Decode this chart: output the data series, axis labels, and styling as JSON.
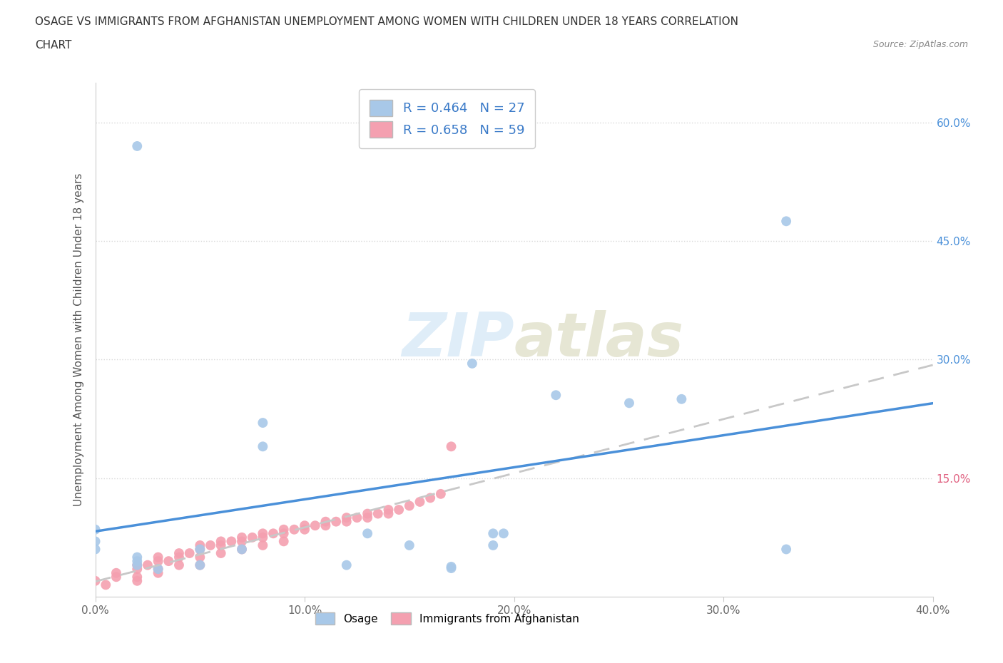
{
  "title_line1": "OSAGE VS IMMIGRANTS FROM AFGHANISTAN UNEMPLOYMENT AMONG WOMEN WITH CHILDREN UNDER 18 YEARS CORRELATION",
  "title_line2": "CHART",
  "source_text": "Source: ZipAtlas.com",
  "ylabel": "Unemployment Among Women with Children Under 18 years",
  "xlim": [
    0.0,
    0.4
  ],
  "ylim": [
    0.0,
    0.65
  ],
  "xtick_labels": [
    "0.0%",
    "10.0%",
    "20.0%",
    "30.0%",
    "40.0%"
  ],
  "xtick_values": [
    0.0,
    0.1,
    0.2,
    0.3,
    0.4
  ],
  "ytick_values": [
    0.15,
    0.3,
    0.45,
    0.6
  ],
  "osage_R": 0.464,
  "osage_N": 27,
  "afghan_R": 0.658,
  "afghan_N": 59,
  "osage_color": "#a8c8e8",
  "osage_line_color": "#4a90d9",
  "afghan_color": "#f4a0b0",
  "afghan_line_color": "#e06080",
  "trendline_osage_color": "#4a90d9",
  "trendline_afghan_color": "#c8c8c8",
  "watermark_zip": "ZIP",
  "watermark_atlas": "atlas",
  "legend_label_osage": "Osage",
  "legend_label_afghan": "Immigrants from Afghanistan",
  "osage_x": [
    0.02,
    0.18,
    0.22,
    0.28,
    0.255,
    0.08,
    0.08,
    0.0,
    0.0,
    0.0,
    0.02,
    0.02,
    0.02,
    0.17,
    0.17,
    0.15,
    0.13,
    0.07,
    0.05,
    0.05,
    0.03,
    0.33,
    0.195,
    0.19,
    0.33,
    0.19,
    0.12
  ],
  "osage_y": [
    0.57,
    0.295,
    0.255,
    0.25,
    0.245,
    0.22,
    0.19,
    0.085,
    0.07,
    0.06,
    0.05,
    0.045,
    0.04,
    0.038,
    0.036,
    0.065,
    0.08,
    0.06,
    0.06,
    0.04,
    0.035,
    0.475,
    0.08,
    0.065,
    0.06,
    0.08,
    0.04
  ],
  "afghan_x": [
    0.0,
    0.005,
    0.01,
    0.01,
    0.02,
    0.02,
    0.02,
    0.02,
    0.025,
    0.03,
    0.03,
    0.03,
    0.03,
    0.035,
    0.04,
    0.04,
    0.04,
    0.045,
    0.05,
    0.05,
    0.05,
    0.05,
    0.055,
    0.06,
    0.06,
    0.06,
    0.065,
    0.07,
    0.07,
    0.07,
    0.075,
    0.08,
    0.08,
    0.08,
    0.085,
    0.09,
    0.09,
    0.09,
    0.095,
    0.1,
    0.1,
    0.105,
    0.11,
    0.11,
    0.115,
    0.12,
    0.12,
    0.125,
    0.13,
    0.13,
    0.135,
    0.14,
    0.14,
    0.145,
    0.15,
    0.155,
    0.16,
    0.165,
    0.17
  ],
  "afghan_y": [
    0.02,
    0.015,
    0.03,
    0.025,
    0.04,
    0.035,
    0.025,
    0.02,
    0.04,
    0.05,
    0.045,
    0.035,
    0.03,
    0.045,
    0.055,
    0.05,
    0.04,
    0.055,
    0.065,
    0.06,
    0.05,
    0.04,
    0.065,
    0.07,
    0.065,
    0.055,
    0.07,
    0.075,
    0.07,
    0.06,
    0.075,
    0.08,
    0.075,
    0.065,
    0.08,
    0.085,
    0.08,
    0.07,
    0.085,
    0.09,
    0.085,
    0.09,
    0.095,
    0.09,
    0.095,
    0.1,
    0.095,
    0.1,
    0.105,
    0.1,
    0.105,
    0.11,
    0.105,
    0.11,
    0.115,
    0.12,
    0.125,
    0.13,
    0.19
  ],
  "background_color": "#ffffff",
  "grid_color": "#d8d8d8",
  "title_color": "#333333",
  "right_ytick_colors": [
    "#e06080",
    "#4a90d9",
    "#4a90d9",
    "#4a90d9"
  ],
  "right_ytick_labels": [
    "15.0%",
    "30.0%",
    "45.0%",
    "60.0%"
  ]
}
